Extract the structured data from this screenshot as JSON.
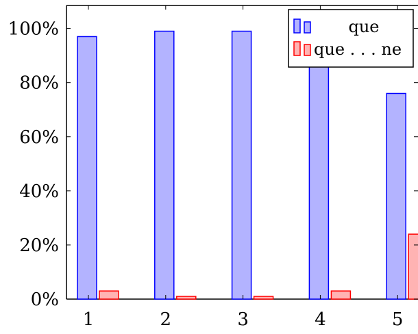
{
  "chart_data": {
    "type": "bar",
    "categories": [
      "1",
      "2",
      "3",
      "4",
      "5"
    ],
    "series": [
      {
        "name": "que",
        "values": [
          97,
          99,
          99,
          97,
          76
        ],
        "color": "#b3b3ff",
        "stroke": "#0000ff"
      },
      {
        "name": "que . . . ne",
        "values": [
          3,
          1,
          1,
          3,
          24
        ],
        "color": "#ffb3b3",
        "stroke": "#ff0000"
      }
    ],
    "ylim": [
      0,
      108.5
    ],
    "yticks": [
      {
        "value": 0,
        "label": "0%"
      },
      {
        "value": 20,
        "label": "20%"
      },
      {
        "value": 40,
        "label": "40%"
      },
      {
        "value": 60,
        "label": "60%"
      },
      {
        "value": 80,
        "label": "80%"
      },
      {
        "value": 100,
        "label": "100%"
      }
    ],
    "title": "",
    "xlabel": "",
    "ylabel": "",
    "legend_position": "top-right",
    "grid": false
  }
}
